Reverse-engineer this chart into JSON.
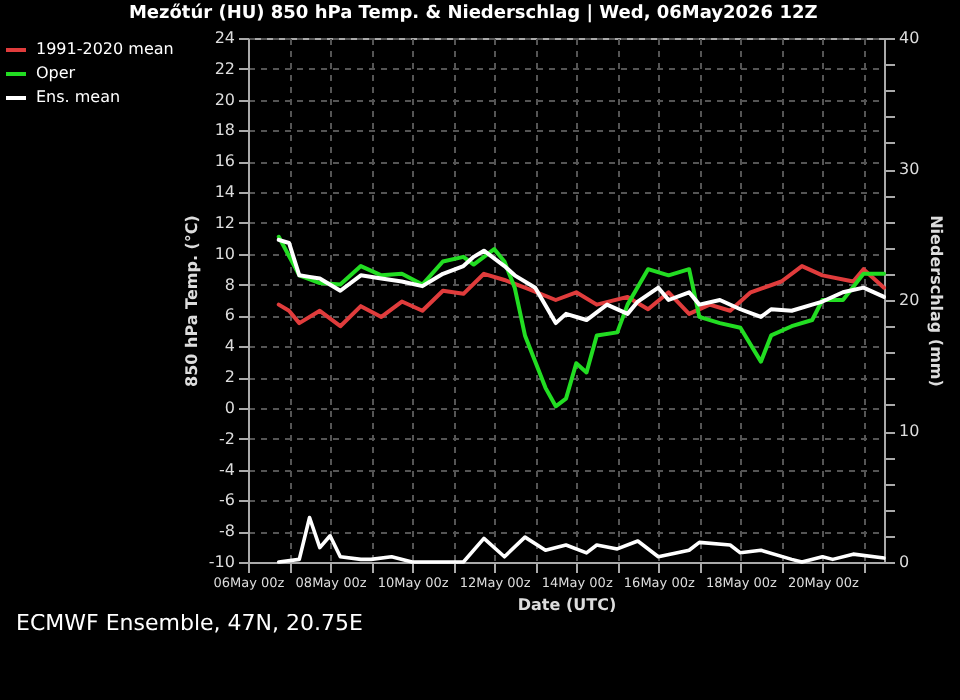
{
  "chart_data": {
    "type": "line",
    "title": "Mezőtúr  (HU)  850 hPa Temp. & Niederschlag | Wed, 06May2026 12Z",
    "xlabel": "Date (UTC)",
    "ylabel": "850 hPa Temp. (°C)",
    "y2label": "Niederschlag (mm)",
    "annotations": [
      "ECMWF Ensemble, 47N, 20.75E"
    ],
    "xlim": [
      "2026-05-06",
      "2026-05-21T12:00"
    ],
    "xticks": [
      {
        "value": "2026-05-06",
        "label": "06May 00z"
      },
      {
        "value": "2026-05-07",
        "label": null
      },
      {
        "value": "2026-05-08",
        "label": "08May 00z"
      },
      {
        "value": "2026-05-09",
        "label": null
      },
      {
        "value": "2026-05-10",
        "label": "10May 00z"
      },
      {
        "value": "2026-05-11",
        "label": null
      },
      {
        "value": "2026-05-12",
        "label": "12May 00z"
      },
      {
        "value": "2026-05-13",
        "label": null
      },
      {
        "value": "2026-05-14",
        "label": "14May 00z"
      },
      {
        "value": "2026-05-15",
        "label": null
      },
      {
        "value": "2026-05-16",
        "label": "16May 00z"
      },
      {
        "value": "2026-05-17",
        "label": null
      },
      {
        "value": "2026-05-18",
        "label": "18May 00z"
      },
      {
        "value": "2026-05-19",
        "label": null
      },
      {
        "value": "2026-05-20",
        "label": "20May 00z"
      },
      {
        "value": "2026-05-21",
        "label": null
      }
    ],
    "ylim": [
      -10,
      24
    ],
    "yticks": [
      -10,
      -8,
      -6,
      -4,
      -2,
      0,
      2,
      4,
      6,
      8,
      10,
      12,
      14,
      16,
      18,
      20,
      22,
      24
    ],
    "y2lim": [
      0,
      40
    ],
    "y2ticks": [
      0,
      {
        "value": 2,
        "label": null
      },
      {
        "value": 4,
        "label": null
      },
      {
        "value": 6,
        "label": null
      },
      {
        "value": 8,
        "label": null
      },
      10,
      {
        "value": 12,
        "label": null
      },
      {
        "value": 14,
        "label": null
      },
      {
        "value": 16,
        "label": null
      },
      {
        "value": 18,
        "label": null
      },
      20,
      {
        "value": 22,
        "label": null
      },
      {
        "value": 24,
        "label": null
      },
      {
        "value": 26,
        "label": null
      },
      {
        "value": 28,
        "label": null
      },
      30,
      {
        "value": 32,
        "label": null
      },
      {
        "value": 34,
        "label": null
      },
      {
        "value": 36,
        "label": null
      },
      {
        "value": 38,
        "label": null
      },
      40
    ],
    "grid": true,
    "legend": "left",
    "marker": "none",
    "line_style": "solid",
    "series": [
      {
        "axis": "y2",
        "color": "#ffffff",
        "x": [
          "2026-05-06T18:00",
          "2026-05-07T06:00",
          "2026-05-07T12:00",
          "2026-05-07T18:00",
          "2026-05-08T00:00",
          "2026-05-08T06:00",
          "2026-05-08T18:00",
          "2026-05-09T00:00",
          "2026-05-09T12:00",
          "2026-05-10T00:00",
          "2026-05-11T06:00",
          "2026-05-11T18:00",
          "2026-05-12T06:00",
          "2026-05-12T18:00",
          "2026-05-13T06:00",
          "2026-05-13T18:00",
          "2026-05-14T06:00",
          "2026-05-14T12:00",
          "2026-05-15T00:00",
          "2026-05-15T12:00",
          "2026-05-16T00:00",
          "2026-05-16T18:00",
          "2026-05-17T00:00",
          "2026-05-17T18:00",
          "2026-05-18T00:00",
          "2026-05-18T12:00",
          "2026-05-19T06:00",
          "2026-05-19T12:00",
          "2026-05-20T00:00",
          "2026-05-20T06:00",
          "2026-05-20T18:00",
          "2026-05-21T12:00"
        ],
        "values": [
          0,
          0.2,
          3.4,
          1.1,
          2.0,
          0.4,
          0.2,
          0.2,
          0.4,
          0,
          0,
          1.8,
          0.4,
          1.9,
          0.9,
          1.3,
          0.7,
          1.3,
          1.0,
          1.6,
          0.4,
          0.9,
          1.5,
          1.3,
          0.7,
          0.9,
          0.2,
          0,
          0.4,
          0.2,
          0.6,
          0.3
        ]
      },
      {
        "name": "1991-2020 mean",
        "color": "#e03c3c",
        "x": [
          "2026-05-06T18:00",
          "2026-05-07T00:00",
          "2026-05-07T06:00",
          "2026-05-07T18:00",
          "2026-05-08T06:00",
          "2026-05-08T18:00",
          "2026-05-09T06:00",
          "2026-05-09T18:00",
          "2026-05-10T06:00",
          "2026-05-10T18:00",
          "2026-05-11T06:00",
          "2026-05-11T18:00",
          "2026-05-12T06:00",
          "2026-05-12T18:00",
          "2026-05-13T12:00",
          "2026-05-14T00:00",
          "2026-05-14T12:00",
          "2026-05-15T06:00",
          "2026-05-15T18:00",
          "2026-05-16T06:00",
          "2026-05-16T18:00",
          "2026-05-17T06:00",
          "2026-05-17T18:00",
          "2026-05-18T06:00",
          "2026-05-19T00:00",
          "2026-05-19T12:00",
          "2026-05-20T00:00",
          "2026-05-20T18:00",
          "2026-05-21T00:00",
          "2026-05-21T12:00"
        ],
        "values": [
          6.7,
          6.3,
          5.5,
          6.3,
          5.3,
          6.6,
          5.9,
          6.9,
          6.3,
          7.6,
          7.4,
          8.7,
          8.3,
          7.8,
          7.0,
          7.5,
          6.7,
          7.2,
          6.4,
          7.5,
          6.1,
          6.7,
          6.3,
          7.5,
          8.2,
          9.2,
          8.6,
          8.2,
          9.0,
          7.8
        ]
      },
      {
        "name": "Oper",
        "color": "#22dd22",
        "x": [
          "2026-05-06T18:00",
          "2026-05-07T06:00",
          "2026-05-07T18:00",
          "2026-05-08T06:00",
          "2026-05-08T18:00",
          "2026-05-09T06:00",
          "2026-05-09T18:00",
          "2026-05-10T06:00",
          "2026-05-10T18:00",
          "2026-05-11T06:00",
          "2026-05-11T12:00",
          "2026-05-12T00:00",
          "2026-05-12T06:00",
          "2026-05-12T12:00",
          "2026-05-12T18:00",
          "2026-05-13T06:00",
          "2026-05-13T12:00",
          "2026-05-13T18:00",
          "2026-05-14T00:00",
          "2026-05-14T06:00",
          "2026-05-14T12:00",
          "2026-05-15T00:00",
          "2026-05-15T06:00",
          "2026-05-15T18:00",
          "2026-05-16T06:00",
          "2026-05-16T18:00",
          "2026-05-17T00:00",
          "2026-05-17T12:00",
          "2026-05-18T00:00",
          "2026-05-18T12:00",
          "2026-05-18T18:00",
          "2026-05-19T06:00",
          "2026-05-19T18:00",
          "2026-05-20T00:00",
          "2026-05-20T12:00",
          "2026-05-21T00:00",
          "2026-05-21T12:00"
        ],
        "values": [
          11.1,
          8.6,
          8.1,
          8.0,
          9.2,
          8.6,
          8.7,
          8.0,
          9.5,
          9.8,
          9.3,
          10.3,
          9.5,
          7.8,
          4.7,
          1.3,
          0.1,
          0.6,
          2.9,
          2.3,
          4.7,
          4.9,
          6.7,
          9.0,
          8.6,
          9.0,
          5.9,
          5.5,
          5.2,
          3.0,
          4.7,
          5.3,
          5.7,
          7.0,
          7.0,
          8.7,
          8.7
        ]
      },
      {
        "name": "Ens. mean",
        "color": "#ffffff",
        "x": [
          "2026-05-06T18:00",
          "2026-05-07T00:00",
          "2026-05-07T06:00",
          "2026-05-07T12:00",
          "2026-05-07T18:00",
          "2026-05-08T06:00",
          "2026-05-08T18:00",
          "2026-05-09T06:00",
          "2026-05-09T18:00",
          "2026-05-10T06:00",
          "2026-05-10T18:00",
          "2026-05-11T06:00",
          "2026-05-11T12:00",
          "2026-05-11T18:00",
          "2026-05-12T06:00",
          "2026-05-12T12:00",
          "2026-05-13T00:00",
          "2026-05-13T12:00",
          "2026-05-13T18:00",
          "2026-05-14T06:00",
          "2026-05-14T18:00",
          "2026-05-15T06:00",
          "2026-05-15T12:00",
          "2026-05-16T00:00",
          "2026-05-16T06:00",
          "2026-05-16T18:00",
          "2026-05-17T00:00",
          "2026-05-17T12:00",
          "2026-05-18T00:00",
          "2026-05-18T12:00",
          "2026-05-18T18:00",
          "2026-05-19T06:00",
          "2026-05-19T18:00",
          "2026-05-20T00:00",
          "2026-05-20T12:00",
          "2026-05-21T00:00",
          "2026-05-21T12:00"
        ],
        "values": [
          10.9,
          10.7,
          8.6,
          8.5,
          8.4,
          7.6,
          8.6,
          8.4,
          8.2,
          7.9,
          8.7,
          9.2,
          9.8,
          10.2,
          9.2,
          8.6,
          7.8,
          5.5,
          6.1,
          5.7,
          6.7,
          6.1,
          6.9,
          7.8,
          7.0,
          7.5,
          6.7,
          7.0,
          6.4,
          5.9,
          6.4,
          6.3,
          6.7,
          6.9,
          7.5,
          7.8,
          7.2
        ]
      }
    ]
  }
}
